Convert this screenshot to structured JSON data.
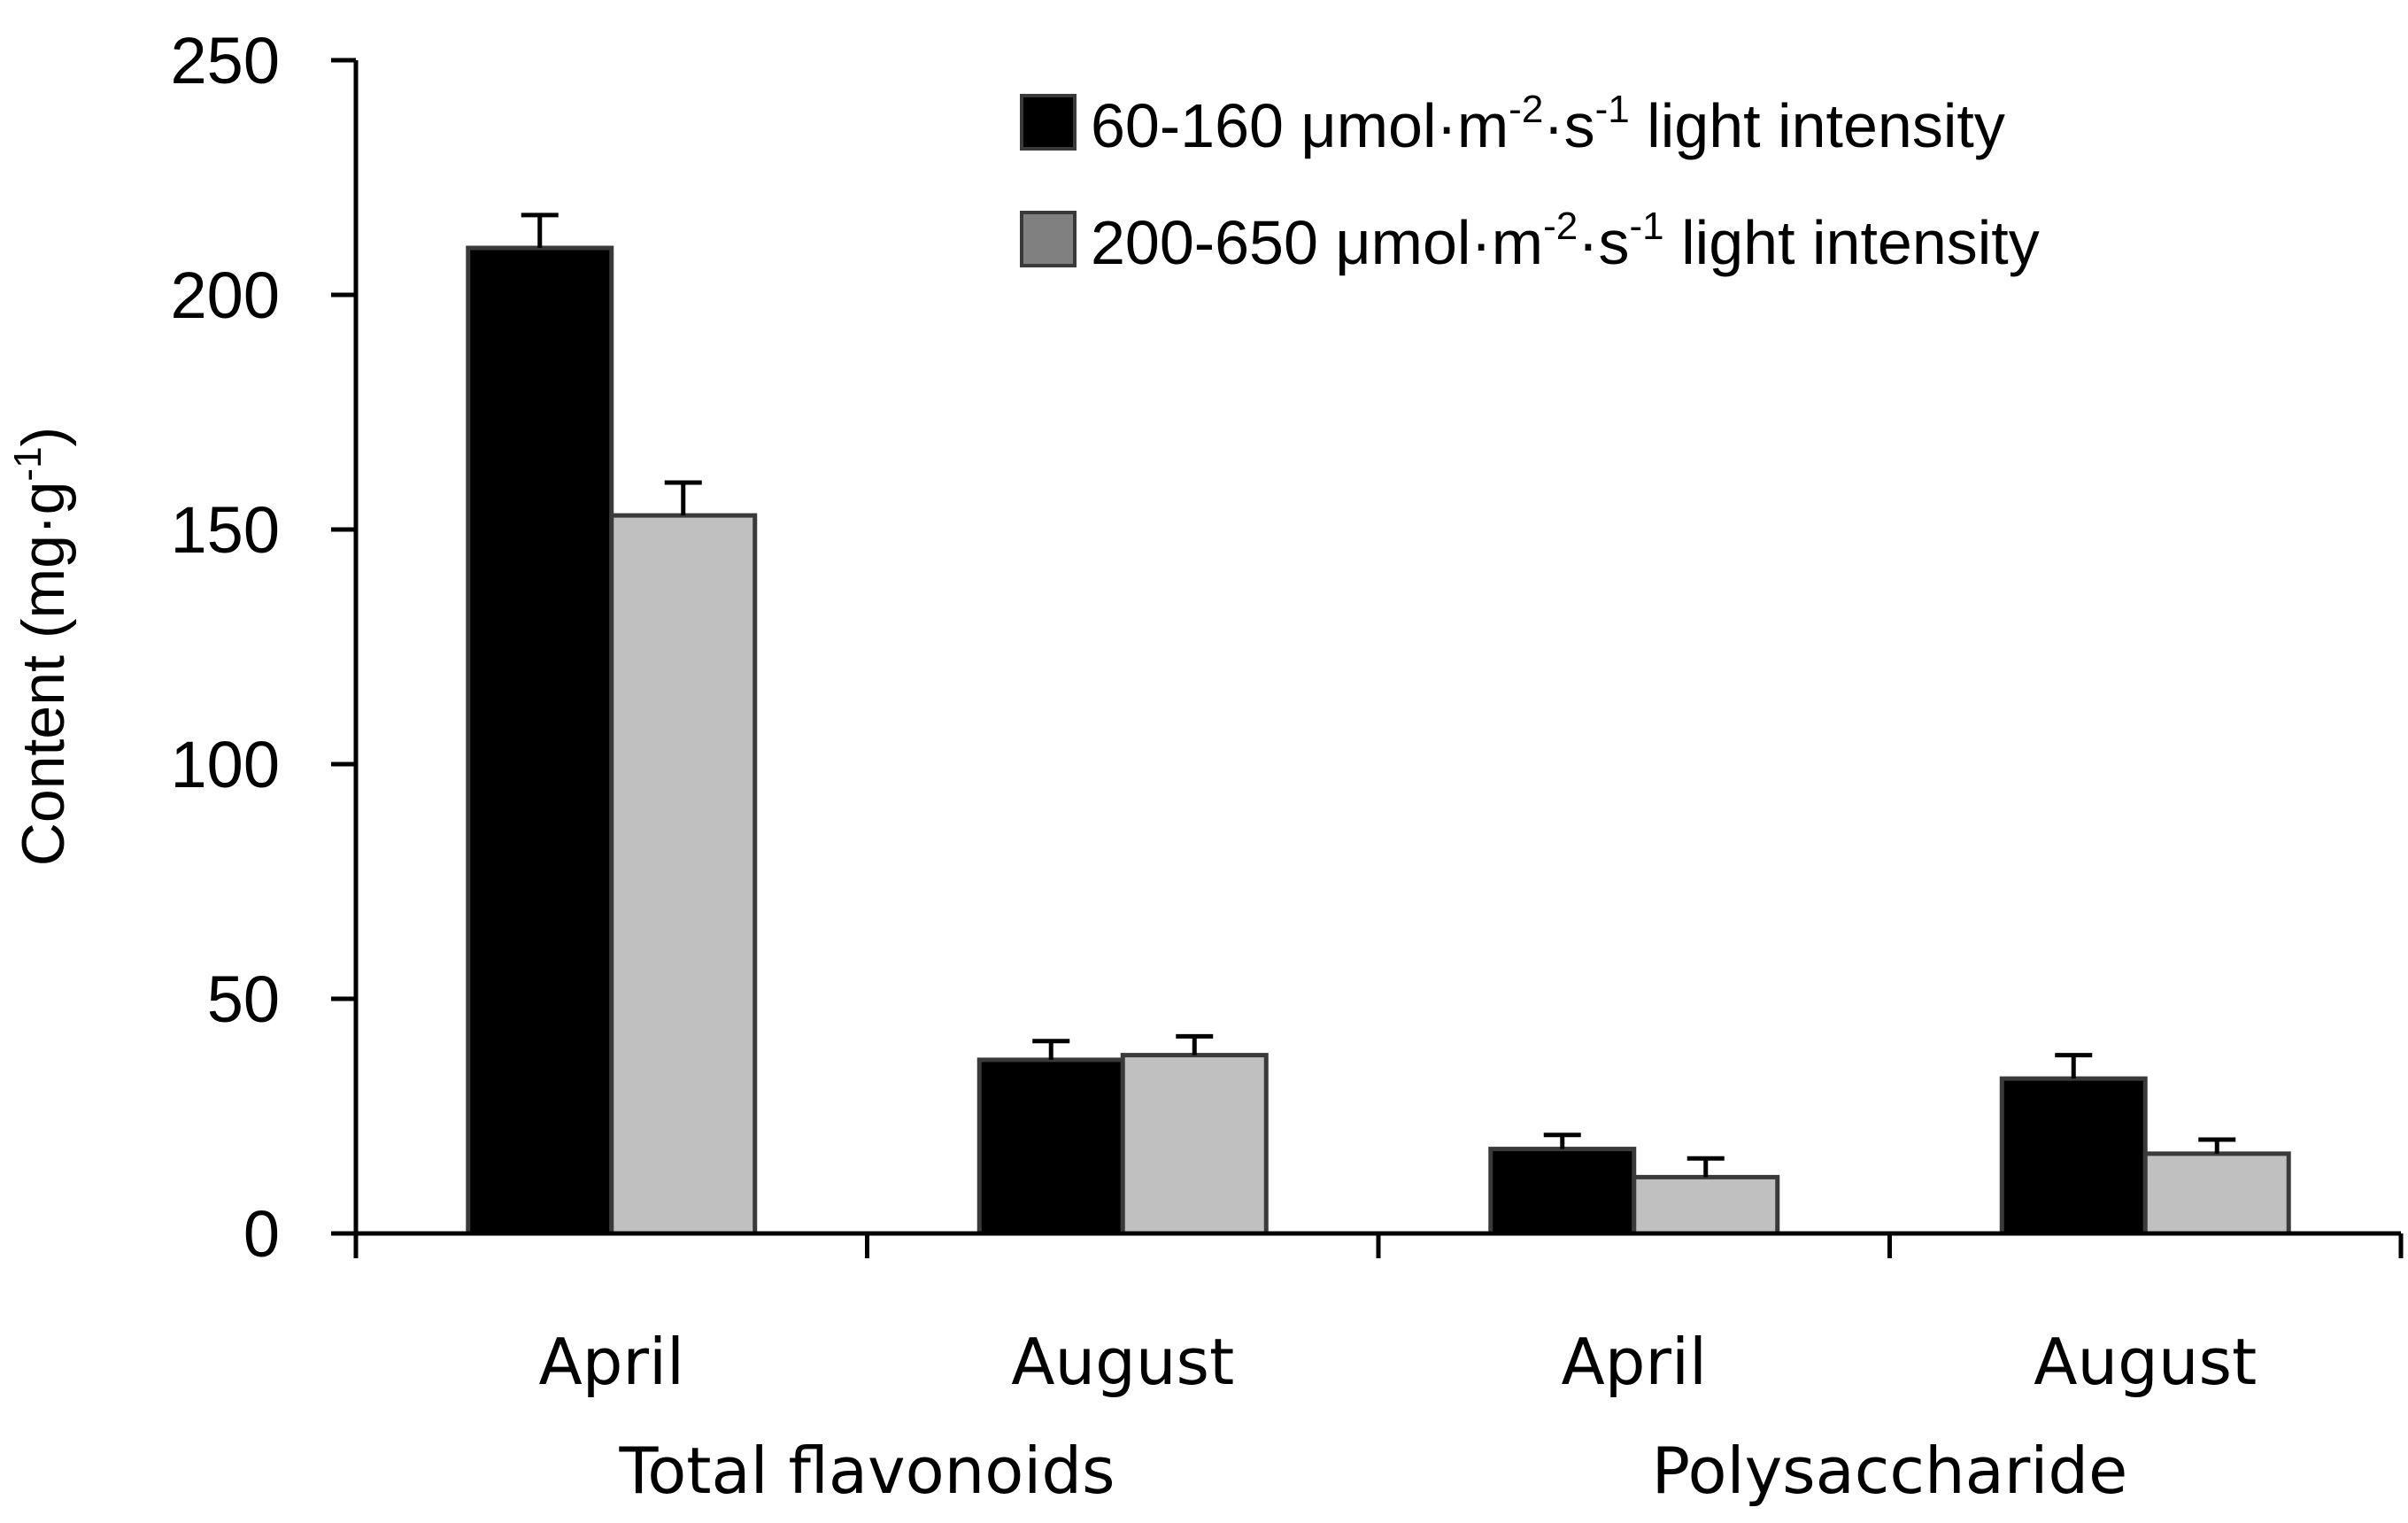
{
  "chart_data": {
    "type": "bar",
    "ylabel": {
      "main": "Content (mg·g",
      "sup": "-1",
      "close": ")"
    },
    "ylim": [
      0,
      250
    ],
    "yticks": [
      0,
      50,
      100,
      150,
      200,
      250
    ],
    "grid": false,
    "legend_placement": "top-right",
    "categories": [
      "April",
      "August",
      "April",
      "August"
    ],
    "groups": [
      {
        "label": "Total  flavonoids",
        "categories": [
          0,
          1
        ]
      },
      {
        "label": "Polysaccharide",
        "categories": [
          2,
          3
        ]
      }
    ],
    "series": [
      {
        "name": "60-160 μmol·m-2·s-1 light intensity",
        "legend_parts": [
          "60-160 μmol·m",
          "-2",
          "·s",
          "-1",
          " light intensity"
        ],
        "color": "#000000",
        "legend_color": "#000000",
        "values": [
          210,
          37,
          18,
          33
        ],
        "errors": [
          7,
          4,
          3,
          5
        ]
      },
      {
        "name": "200-650 μmol·m-2·s-1 light intensity",
        "legend_parts": [
          "200-650 μmol·m",
          "-2",
          "·s",
          "-1",
          " light intensity"
        ],
        "color": "#c0c0c0",
        "legend_color": "#808080",
        "values": [
          153,
          38,
          12,
          17
        ],
        "errors": [
          7,
          4,
          4,
          3
        ]
      }
    ]
  }
}
